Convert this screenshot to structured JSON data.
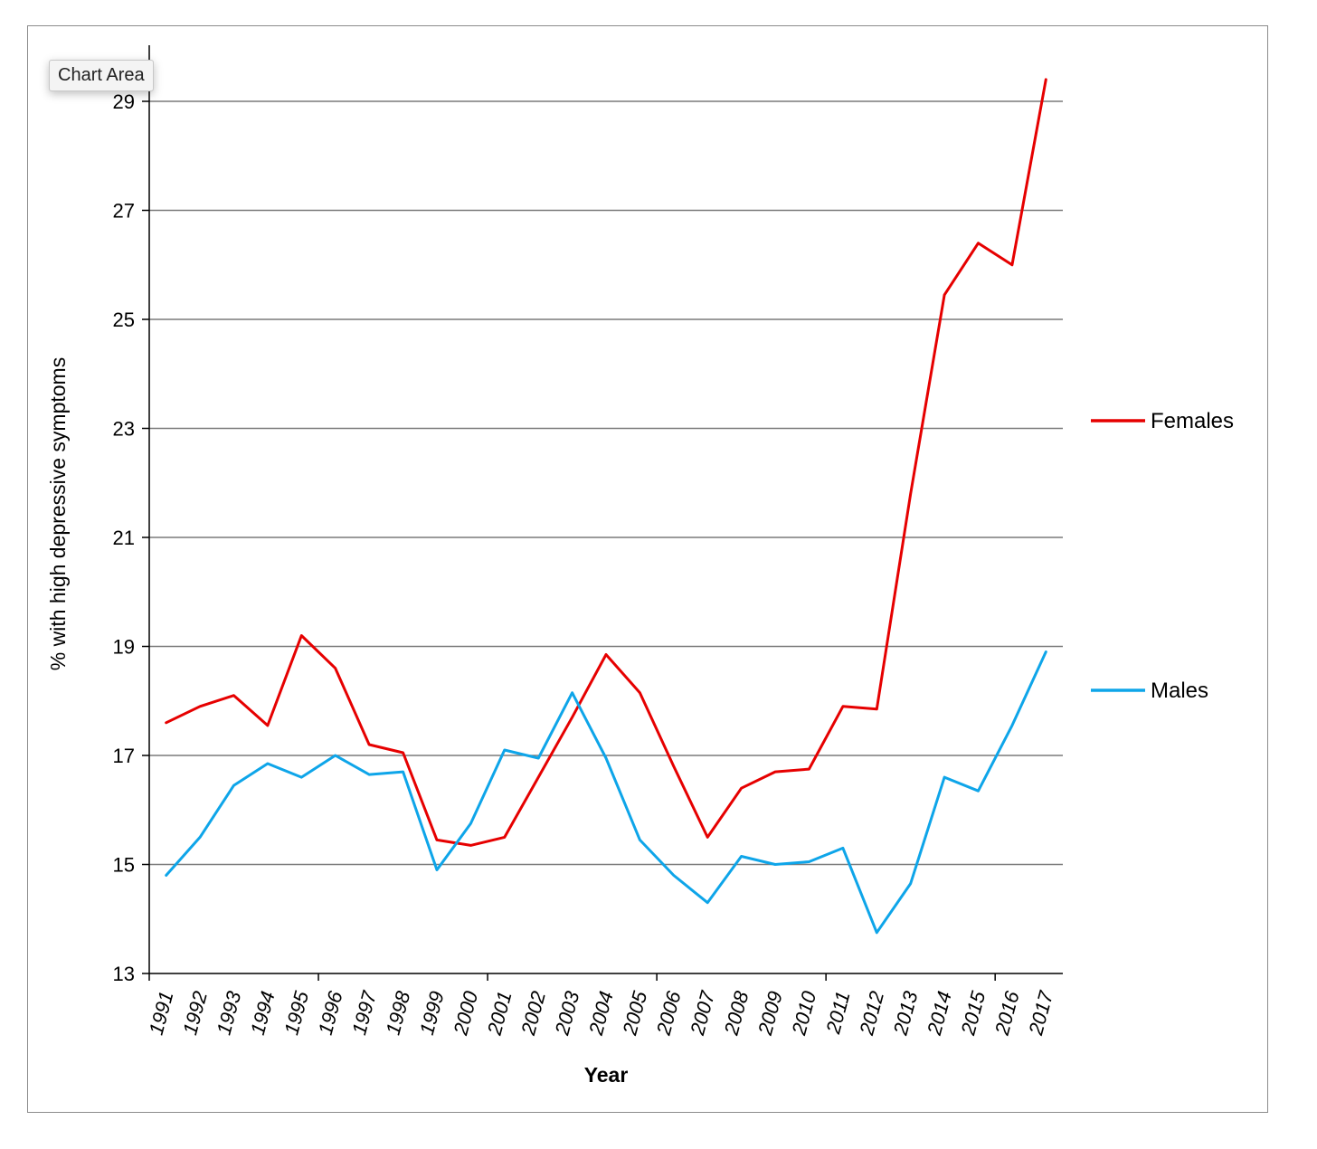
{
  "tooltip": {
    "label": "Chart Area"
  },
  "chart_data": {
    "type": "line",
    "title": "",
    "xlabel": "Year",
    "ylabel": "% with high depressive symptoms",
    "ylim": [
      13,
      30
    ],
    "yticks": [
      13,
      15,
      17,
      19,
      21,
      23,
      25,
      27,
      29
    ],
    "grid": true,
    "legend_position": "right",
    "categories": [
      "1991",
      "1992",
      "1993",
      "1994",
      "1995",
      "1996",
      "1997",
      "1998",
      "1999",
      "2000",
      "2001",
      "2002",
      "2003",
      "2004",
      "2005",
      "2006",
      "2007",
      "2008",
      "2009",
      "2010",
      "2011",
      "2012",
      "2013",
      "2014",
      "2015",
      "2016",
      "2017"
    ],
    "series": [
      {
        "name": "Females",
        "color": "#e60000",
        "values": [
          17.6,
          17.9,
          18.1,
          17.55,
          19.2,
          18.6,
          17.2,
          17.05,
          15.45,
          15.35,
          15.5,
          16.6,
          17.7,
          18.85,
          18.15,
          16.8,
          15.5,
          16.4,
          16.7,
          16.75,
          17.9,
          17.85,
          21.8,
          25.45,
          26.4,
          26.0,
          29.4
        ]
      },
      {
        "name": "Males",
        "color": "#0ea5e9",
        "values": [
          14.8,
          15.5,
          16.45,
          16.85,
          16.6,
          17.0,
          16.65,
          16.7,
          14.9,
          15.75,
          17.1,
          16.95,
          18.15,
          16.95,
          15.45,
          14.8,
          14.3,
          15.15,
          15.0,
          15.05,
          15.3,
          13.75,
          14.65,
          16.6,
          16.35,
          17.55,
          18.9
        ]
      }
    ]
  }
}
